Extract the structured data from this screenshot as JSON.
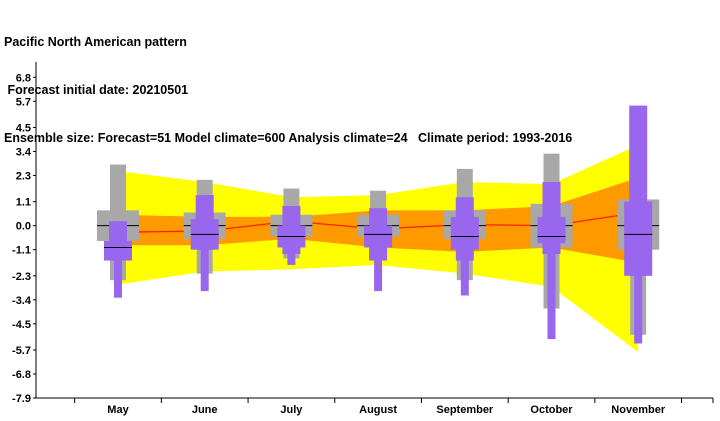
{
  "header": {
    "line1": "Pacific North American pattern",
    "line2": " Forecast initial date: 20210501",
    "line3": "Ensemble size: Forecast=51 Model climate=600 Analysis climate=24   Climate period: 1993-2016"
  },
  "colors": {
    "outer_band": "#ffff00",
    "inner_band": "#ff9900",
    "median_line": "#ff2200",
    "climate_box": "#a8a8a8",
    "forecast_box": "#9966ee"
  },
  "chart_data": {
    "type": "box",
    "categories": [
      "May",
      "June",
      "July",
      "August",
      "September",
      "October",
      "November"
    ],
    "y_ticks": [
      6.8,
      5.7,
      4.5,
      3.4,
      2.3,
      1.1,
      0.0,
      -1.1,
      -2.3,
      -3.4,
      -4.5,
      -5.7,
      -6.8,
      -7.9
    ],
    "ylim": [
      -7.9,
      7.5
    ],
    "model_climate_band": {
      "outer_upper": [
        2.5,
        2.0,
        1.3,
        1.4,
        2.0,
        1.9,
        3.7
      ],
      "inner_upper": [
        0.5,
        0.4,
        0.4,
        0.7,
        0.7,
        0.9,
        2.2
      ],
      "median": [
        -0.3,
        -0.25,
        0.2,
        -0.15,
        0.05,
        0.0,
        0.6
      ],
      "inner_lower": [
        -0.9,
        -0.9,
        -0.6,
        -1.0,
        -1.2,
        -1.0,
        -1.7
      ],
      "outer_lower": [
        -2.7,
        -2.1,
        -2.0,
        -1.8,
        -2.2,
        -2.8,
        -5.8
      ]
    },
    "analysis_climate": [
      {
        "min": -2.5,
        "q1": -0.7,
        "median": 0.0,
        "q3": 0.7,
        "max": 2.8
      },
      {
        "min": -2.2,
        "q1": -0.6,
        "median": 0.0,
        "q3": 0.6,
        "max": 2.1
      },
      {
        "min": -1.5,
        "q1": -0.5,
        "median": 0.0,
        "q3": 0.5,
        "max": 1.7
      },
      {
        "min": -1.4,
        "q1": -0.5,
        "median": 0.0,
        "q3": 0.5,
        "max": 1.6
      },
      {
        "min": -2.5,
        "q1": -0.6,
        "median": 0.0,
        "q3": 0.7,
        "max": 2.6
      },
      {
        "min": -3.8,
        "q1": -1.0,
        "median": 0.0,
        "q3": 1.0,
        "max": 3.3
      },
      {
        "min": -5.0,
        "q1": -1.1,
        "median": 0.0,
        "q3": 1.2,
        "max": 4.8
      }
    ],
    "forecast": [
      {
        "min": -3.3,
        "p10": -1.6,
        "q1": -1.6,
        "median": -1.0,
        "q3": -0.7,
        "p90": 0.2,
        "max": 0.2
      },
      {
        "min": -3.0,
        "p10": -1.1,
        "q1": -1.1,
        "median": -0.4,
        "q3": 0.3,
        "p90": 1.4,
        "max": 1.4
      },
      {
        "min": -1.8,
        "p10": -1.3,
        "q1": -1.0,
        "median": -0.5,
        "q3": 0.0,
        "p90": 0.9,
        "max": 0.9
      },
      {
        "min": -3.0,
        "p10": -1.6,
        "q1": -1.0,
        "median": -0.4,
        "q3": 0.0,
        "p90": 0.8,
        "max": 0.8
      },
      {
        "min": -3.2,
        "p10": -1.6,
        "q1": -1.1,
        "median": -0.5,
        "q3": 0.4,
        "p90": 1.3,
        "max": 1.3
      },
      {
        "min": -5.2,
        "p10": -1.3,
        "q1": -0.8,
        "median": -0.5,
        "q3": 0.4,
        "p90": 2.0,
        "max": 2.0
      },
      {
        "min": -5.4,
        "p10": -2.3,
        "q1": -2.3,
        "median": -0.4,
        "q3": 1.1,
        "p90": 5.5,
        "max": 5.5
      }
    ]
  }
}
